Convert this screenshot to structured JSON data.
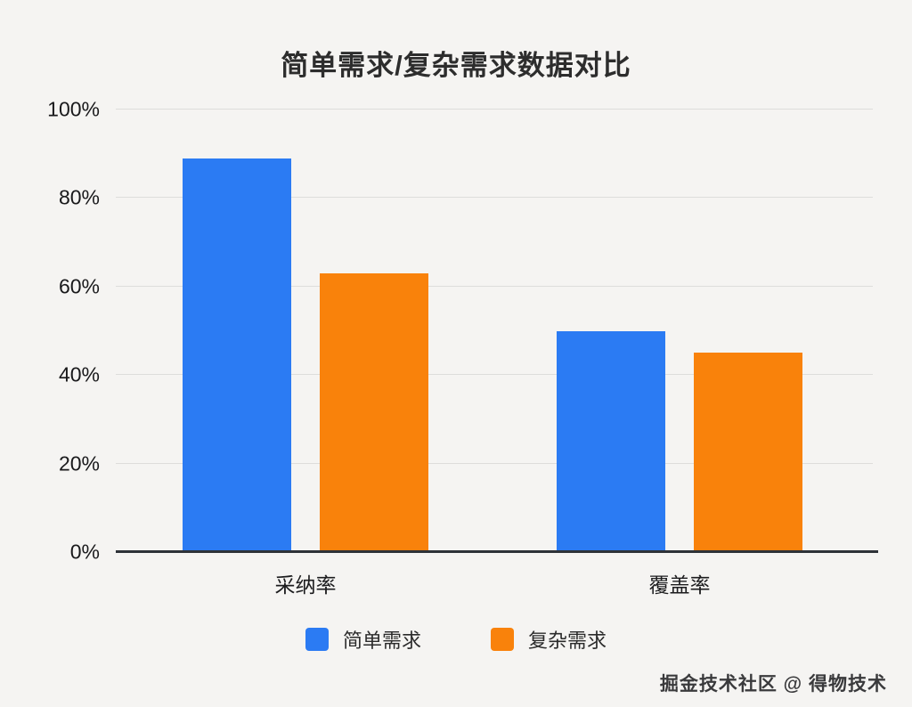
{
  "chart_data": {
    "type": "bar",
    "title": "简单需求/复杂需求数据对比",
    "categories": [
      "采纳率",
      "覆盖率"
    ],
    "series": [
      {
        "name": "简单需求",
        "color": "#2b7bf3",
        "values": [
          89,
          50
        ]
      },
      {
        "name": "复杂需求",
        "color": "#f9820b",
        "values": [
          63,
          45
        ]
      }
    ],
    "yticks": [
      "0%",
      "20%",
      "40%",
      "60%",
      "80%",
      "100%"
    ],
    "ylim": [
      0,
      100
    ],
    "xlabel": "",
    "ylabel": "",
    "grid": "horizontal",
    "legend_position": "bottom"
  },
  "watermark": {
    "text": "掘金技术社区 @ 得物技术"
  }
}
